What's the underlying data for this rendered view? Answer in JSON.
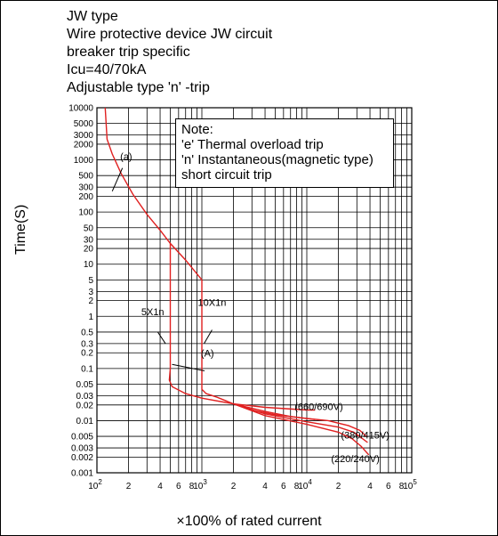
{
  "header": {
    "lines": [
      "JW  type",
      "Wire protective device JW circuit",
      "breaker trip specific",
      "Icu=40/70kA",
      "Adjustable type 'n' -trip"
    ]
  },
  "note": {
    "lines": [
      "Note:",
      "'e' Thermal overload trip",
      "'n' Instantaneous(magnetic type)",
      "short circuit trip"
    ]
  },
  "chart_data": {
    "type": "line",
    "xscale": "log",
    "yscale": "log",
    "xlim": [
      100,
      100000
    ],
    "ylim": [
      0.001,
      10000
    ],
    "grid": true,
    "xlabel": "×100% of rated current",
    "ylabel": "Time(S)",
    "yticks": [
      {
        "v": 10000,
        "label": "10000"
      },
      {
        "v": 5000,
        "label": "5000"
      },
      {
        "v": 3000,
        "label": "3000"
      },
      {
        "v": 2000,
        "label": "2000"
      },
      {
        "v": 1000,
        "label": "1000"
      },
      {
        "v": 500,
        "label": "500"
      },
      {
        "v": 300,
        "label": "300"
      },
      {
        "v": 200,
        "label": "200"
      },
      {
        "v": 100,
        "label": "100"
      },
      {
        "v": 50,
        "label": "50"
      },
      {
        "v": 30,
        "label": "30"
      },
      {
        "v": 20,
        "label": "20"
      },
      {
        "v": 10,
        "label": "10"
      },
      {
        "v": 5,
        "label": "5"
      },
      {
        "v": 3,
        "label": "3"
      },
      {
        "v": 2,
        "label": "2"
      },
      {
        "v": 1,
        "label": "1"
      },
      {
        "v": 0.5,
        "label": "0.5"
      },
      {
        "v": 0.3,
        "label": "0.3"
      },
      {
        "v": 0.2,
        "label": "0.2"
      },
      {
        "v": 0.1,
        "label": "0.1"
      },
      {
        "v": 0.05,
        "label": "0.05"
      },
      {
        "v": 0.03,
        "label": "0.03"
      },
      {
        "v": 0.02,
        "label": "0.02"
      },
      {
        "v": 0.01,
        "label": "0.01"
      },
      {
        "v": 0.005,
        "label": "0.005"
      },
      {
        "v": 0.003,
        "label": "0.003"
      },
      {
        "v": 0.002,
        "label": "0.002"
      },
      {
        "v": 0.001,
        "label": "0.001"
      }
    ],
    "ygrid": [
      10000,
      5000,
      3000,
      2000,
      1000,
      500,
      300,
      200,
      100,
      50,
      30,
      20,
      10,
      5,
      3,
      2,
      1,
      0.5,
      0.3,
      0.2,
      0.1,
      0.05,
      0.03,
      0.02,
      0.01,
      0.005,
      0.003,
      0.002,
      0.001
    ],
    "xticks": [
      {
        "v": 100,
        "base": "10",
        "exp": "2"
      },
      {
        "v": 200,
        "label": "2"
      },
      {
        "v": 400,
        "label": "4"
      },
      {
        "v": 600,
        "label": "6"
      },
      {
        "v": 800,
        "label": "8"
      },
      {
        "v": 1000,
        "base": "10",
        "exp": "3"
      },
      {
        "v": 2000,
        "label": "2"
      },
      {
        "v": 4000,
        "label": "4"
      },
      {
        "v": 6000,
        "label": "6"
      },
      {
        "v": 8000,
        "label": "8"
      },
      {
        "v": 10000,
        "base": "10",
        "exp": "4"
      },
      {
        "v": 20000,
        "label": "2"
      },
      {
        "v": 40000,
        "label": "4"
      },
      {
        "v": 60000,
        "label": "6"
      },
      {
        "v": 80000,
        "label": "8"
      },
      {
        "v": 100000,
        "base": "10",
        "exp": "5"
      }
    ],
    "xgrid": [
      100,
      200,
      300,
      400,
      500,
      600,
      700,
      800,
      900,
      1000,
      2000,
      3000,
      4000,
      5000,
      6000,
      7000,
      8000,
      9000,
      10000,
      20000,
      30000,
      40000,
      50000,
      60000,
      70000,
      80000,
      90000,
      100000
    ],
    "series": [
      {
        "name": "(a)",
        "color": "#e02020",
        "points": [
          [
            120,
            10000
          ],
          [
            125,
            2500
          ],
          [
            140,
            1300
          ],
          [
            170,
            550
          ],
          [
            220,
            220
          ],
          [
            300,
            90
          ],
          [
            400,
            45
          ],
          [
            500,
            25
          ],
          [
            700,
            12
          ],
          [
            1000,
            5
          ]
        ]
      },
      {
        "name": "5X1n",
        "color": "#e02020",
        "points": [
          [
            500,
            25
          ],
          [
            500,
            0.1
          ],
          [
            490,
            0.06
          ],
          [
            520,
            0.045
          ],
          [
            700,
            0.033
          ],
          [
            1000,
            0.027
          ],
          [
            2000,
            0.021
          ],
          [
            4000,
            0.018
          ],
          [
            10000,
            0.016
          ],
          [
            12000,
            0.016
          ]
        ]
      },
      {
        "name": "10X1n",
        "color": "#e02020",
        "points": [
          [
            1000,
            5
          ],
          [
            1000,
            0.04
          ],
          [
            1100,
            0.033
          ],
          [
            1400,
            0.028
          ],
          [
            2000,
            0.021
          ],
          [
            3000,
            0.016
          ],
          [
            5000,
            0.013
          ],
          [
            10000,
            0.011
          ],
          [
            16000,
            0.01
          ],
          [
            25000,
            0.008
          ],
          [
            32000,
            0.0065
          ],
          [
            37000,
            0.005
          ]
        ]
      },
      {
        "name": "(660/690V)",
        "color": "#e02020",
        "points": [
          [
            2000,
            0.021
          ],
          [
            4000,
            0.015
          ],
          [
            7000,
            0.012
          ],
          [
            12000,
            0.0105
          ]
        ]
      },
      {
        "name": "(380/415V)",
        "color": "#e02020",
        "points": [
          [
            2000,
            0.021
          ],
          [
            4000,
            0.0135
          ],
          [
            10000,
            0.0095
          ],
          [
            20000,
            0.0075
          ],
          [
            28000,
            0.006
          ],
          [
            34000,
            0.0045
          ],
          [
            38000,
            0.0038
          ]
        ]
      },
      {
        "name": "(220/240V)",
        "color": "#e02020",
        "points": [
          [
            2000,
            0.021
          ],
          [
            4000,
            0.0125
          ],
          [
            10000,
            0.0085
          ],
          [
            20000,
            0.006
          ],
          [
            27000,
            0.0045
          ],
          [
            33000,
            0.0032
          ],
          [
            39000,
            0.0022
          ]
        ]
      }
    ],
    "annotations": [
      {
        "text": "(a)",
        "x": 190,
        "y": 1000,
        "leader": [
          [
            175,
            700
          ],
          [
            140,
            250
          ]
        ]
      },
      {
        "text": "5X1n",
        "x": 340,
        "y": 1.05,
        "leader": [
          [
            380,
            0.5
          ],
          [
            450,
            0.3
          ]
        ]
      },
      {
        "text": "10X1n",
        "x": 1250,
        "y": 1.6,
        "leader": [
          [
            1250,
            0.55
          ],
          [
            1050,
            0.3
          ]
        ]
      },
      {
        "text": "(A)",
        "x": 1130,
        "y": 0.17,
        "leader": [
          [
            1060,
            0.09
          ],
          [
            520,
            0.12
          ]
        ]
      },
      {
        "text": "(660/690V)",
        "x": 13000,
        "y": 0.016
      },
      {
        "text": "(380/415V)",
        "x": 36000,
        "y": 0.0045
      },
      {
        "text": "(220/240V)",
        "x": 29000,
        "y": 0.0016
      }
    ]
  }
}
